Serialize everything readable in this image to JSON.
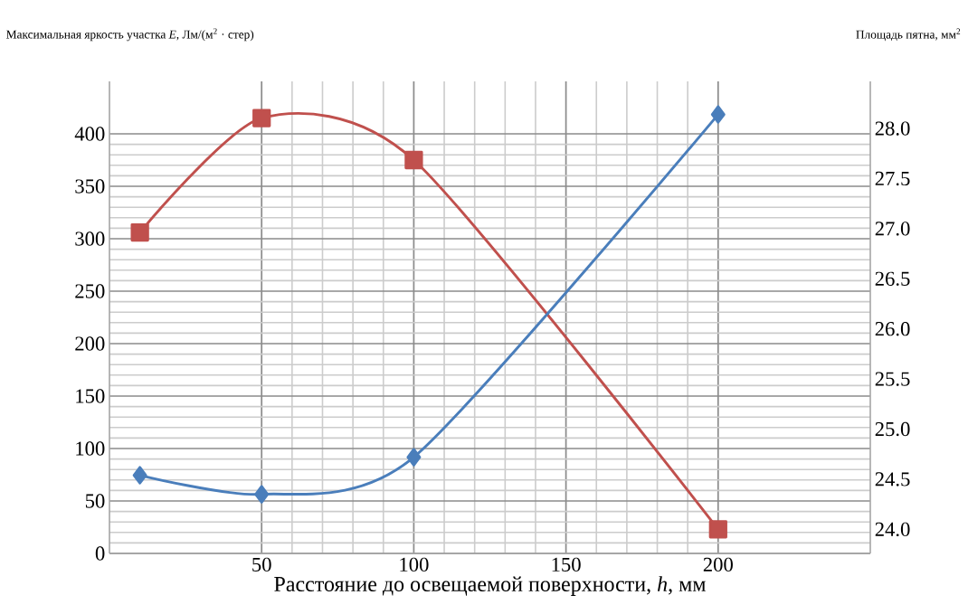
{
  "chart_data": {
    "type": "line",
    "xlabel": "Расстояние до освещаемой поверхности, *h*, мм",
    "ylabel": "Максимальная яркость участка *E*, Лм/(м$^{2}$ · стер)",
    "y2label": "Площадь пятна, мм$^{2}$",
    "x": [
      10,
      50,
      100,
      200
    ],
    "series": [
      {
        "color": "#c0504d",
        "marker": "square",
        "values": [
          306,
          415,
          375,
          23
        ]
      },
      {
        "color": "#4a7ebb",
        "marker": "diamond",
        "axis": "y2",
        "values": [
          24.54,
          24.35,
          24.72,
          28.14
        ]
      }
    ],
    "xlim": [
      0,
      250
    ],
    "xticks": [
      50,
      100,
      150,
      200
    ],
    "ylim": [
      0,
      450
    ],
    "yticks": [
      0,
      50,
      100,
      150,
      200,
      250,
      300,
      350,
      400
    ],
    "y2lim": [
      23.76,
      28.47
    ],
    "y2ticks": [
      {
        "value": 24,
        "label": "24.0"
      },
      {
        "value": 24.5,
        "label": "24.5"
      },
      {
        "value": 25,
        "label": "25.0"
      },
      {
        "value": 25.5,
        "label": "25.5"
      },
      {
        "value": 26,
        "label": "26.0"
      },
      {
        "value": 26.5,
        "label": "26.5"
      },
      {
        "value": 27,
        "label": "27.0"
      },
      {
        "value": 27.5,
        "label": "27.5"
      },
      {
        "value": 28,
        "label": "28.0"
      }
    ],
    "grid": true
  }
}
